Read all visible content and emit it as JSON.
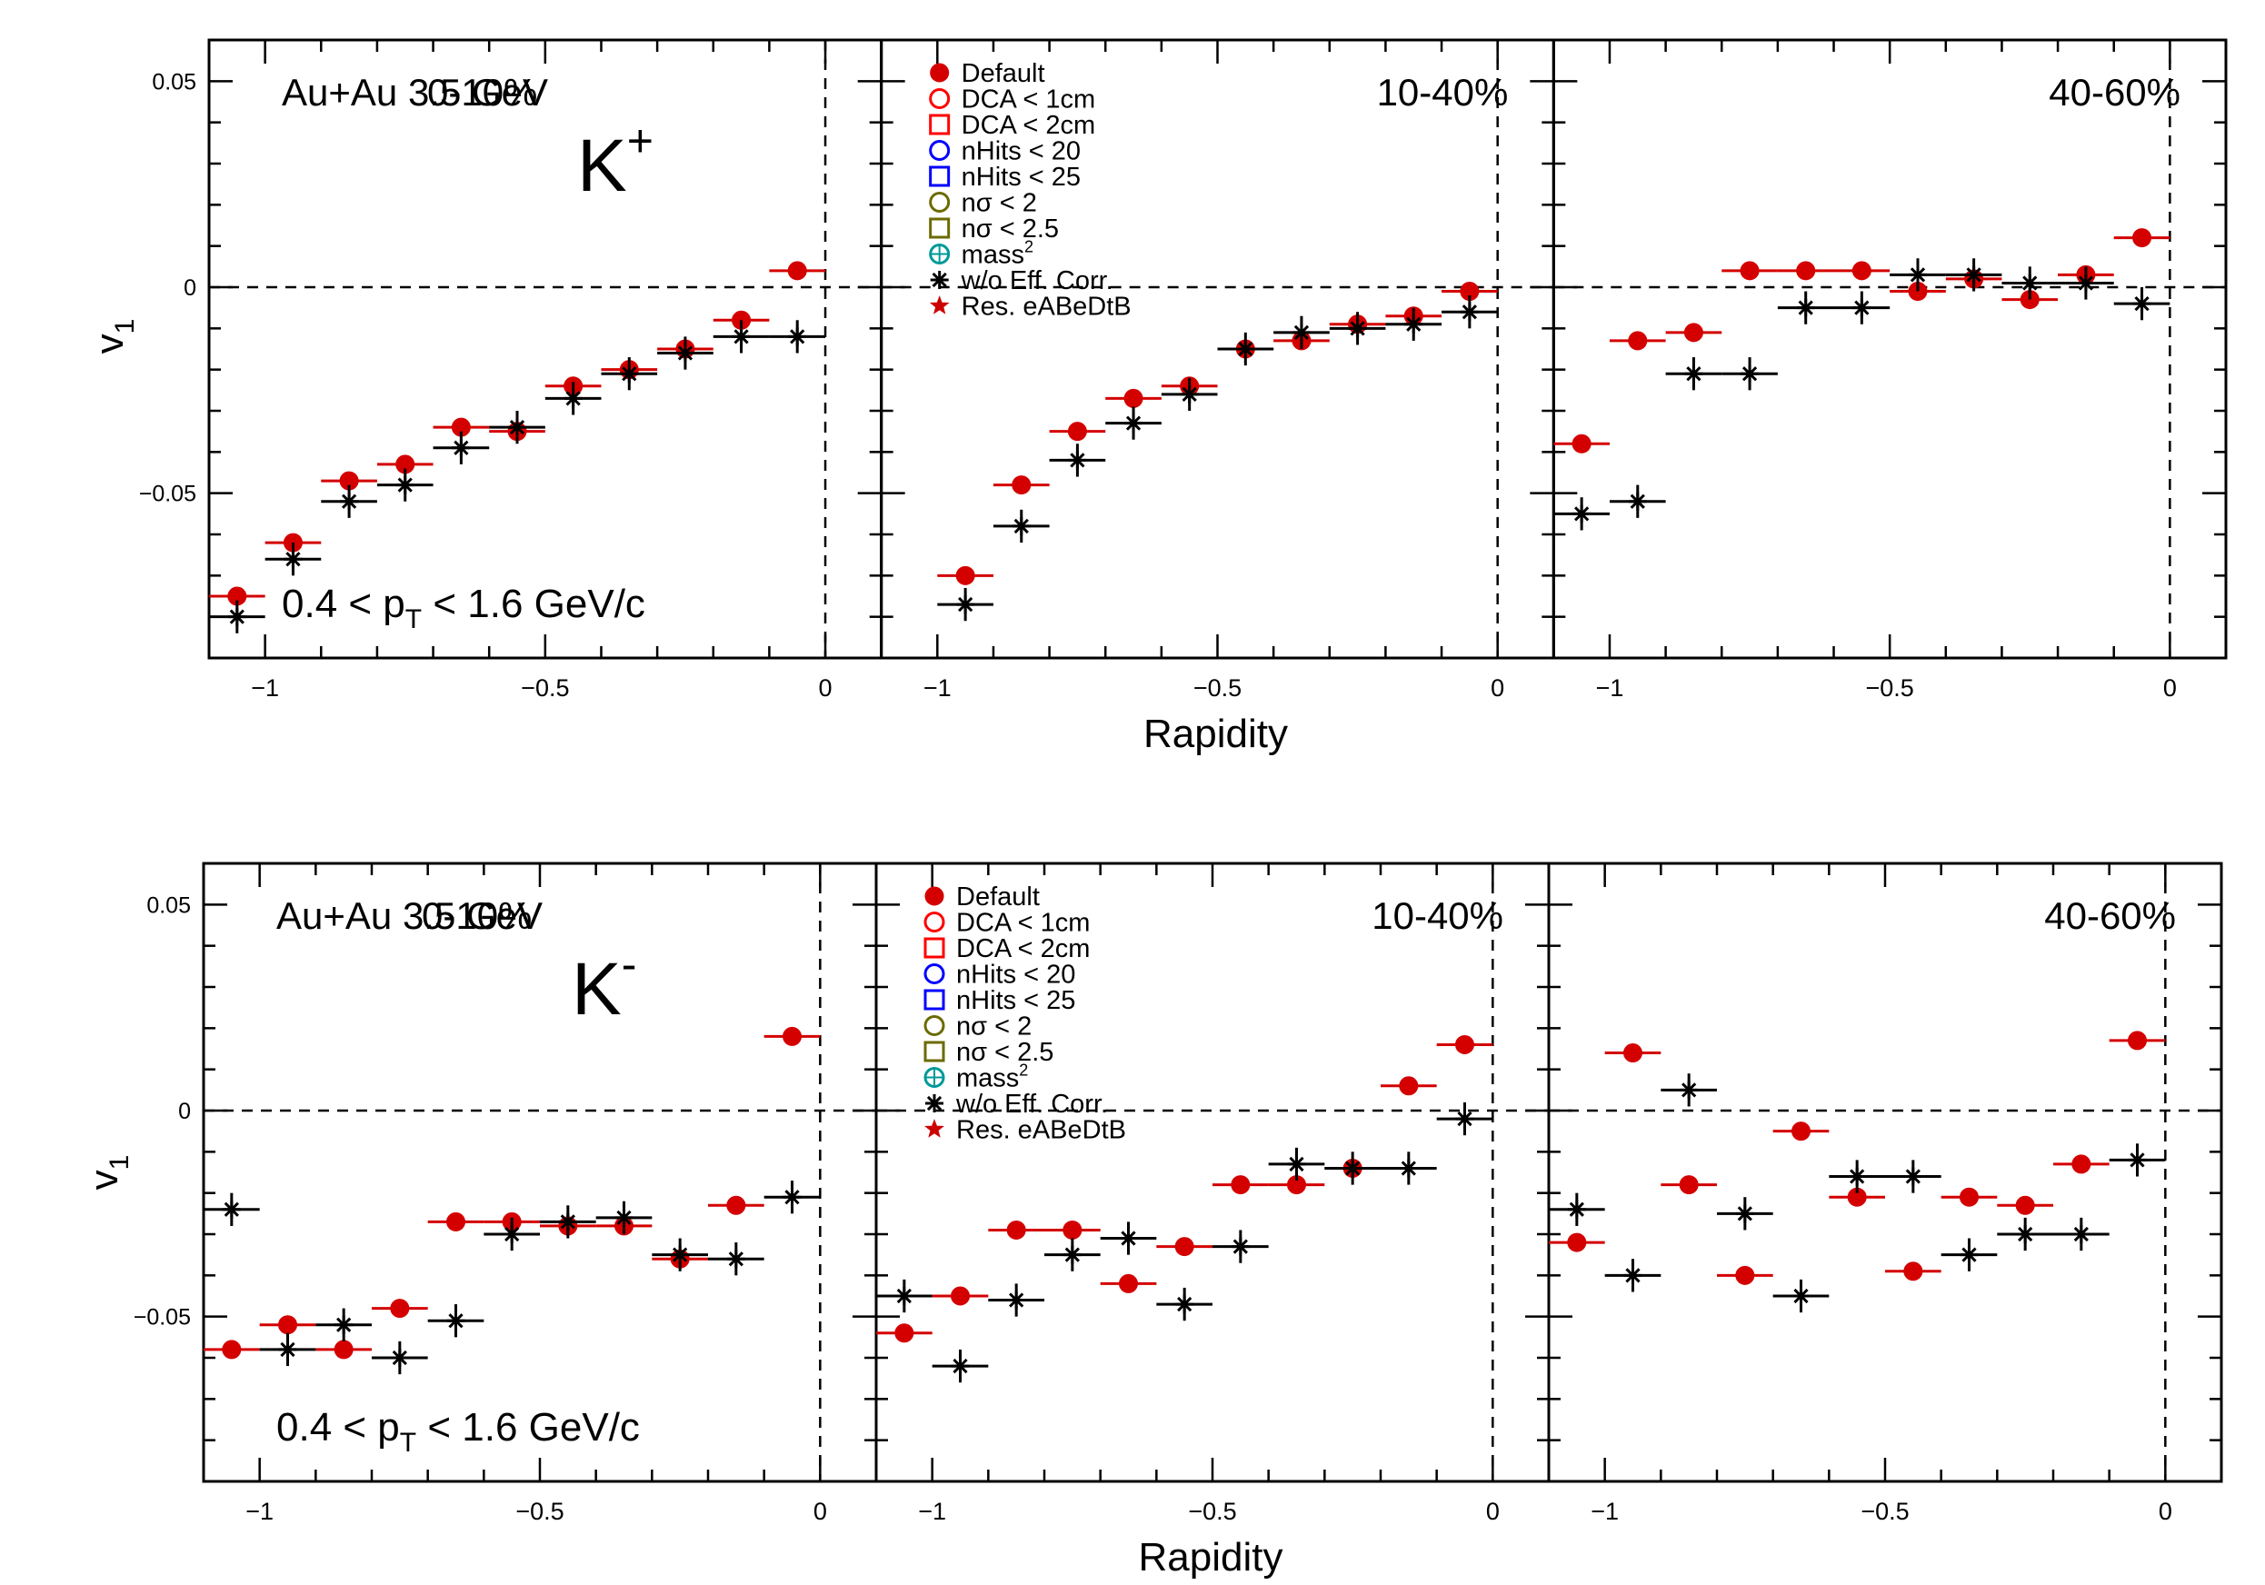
{
  "figure": {
    "xlabel": "Rapidity",
    "ylabel_main": "v",
    "ylabel_sub": "1",
    "collision_label": "Au+Au 3.5 GeV",
    "pt_label": {
      "pre": "0.4 < p",
      "sub": "T",
      "post": " < 1.6 GeV/c"
    },
    "x_ticks": [
      -1,
      -0.5,
      0
    ],
    "x_tick_labels": [
      "−1",
      "−0.5",
      "0"
    ],
    "y_ticks": [
      0.05,
      0,
      -0.05
    ],
    "y_tick_labels": [
      "0.05",
      "0",
      "−0.05"
    ],
    "x_range": [
      -1.1,
      0.1
    ],
    "y_range": [
      -0.09,
      0.06
    ]
  },
  "legend": [
    {
      "key": "default",
      "label": "Default",
      "sub": "",
      "sup": "",
      "marker": "filled-circle",
      "color": "#d40000"
    },
    {
      "key": "dca1",
      "label": "DCA < 1cm",
      "sub": "",
      "sup": "",
      "marker": "open-circle",
      "color": "#ff0000"
    },
    {
      "key": "dca2",
      "label": "DCA < 2cm",
      "sub": "",
      "sup": "",
      "marker": "open-square",
      "color": "#ff0000"
    },
    {
      "key": "nhits20",
      "label": "nHits < 20",
      "sub": "",
      "sup": "",
      "marker": "open-circle",
      "color": "#0000ff"
    },
    {
      "key": "nhits25",
      "label": "nHits < 25",
      "sub": "",
      "sup": "",
      "marker": "open-square",
      "color": "#0000ff"
    },
    {
      "key": "nsig2",
      "label": "nσ < 2",
      "sub": "",
      "sup": "",
      "marker": "open-circle",
      "color": "#6b6b00"
    },
    {
      "key": "nsig25",
      "label": "nσ < 2.5",
      "sub": "",
      "sup": "",
      "marker": "open-square",
      "color": "#6b6b00"
    },
    {
      "key": "mass2",
      "label": "mass",
      "sub": "",
      "sup": "2",
      "marker": "circle-plus",
      "color": "#009999"
    },
    {
      "key": "noeff",
      "label": "w/o Eff. Corr.",
      "sub": "",
      "sup": "",
      "marker": "asterisk",
      "color": "#000000"
    },
    {
      "key": "res",
      "label": "Res. eABeDtB",
      "sub": "",
      "sup": "",
      "marker": "star",
      "color": "#cc0000"
    }
  ],
  "chart_data": [
    {
      "type": "scatter",
      "particle": "K",
      "particle_sup": "+",
      "xlabel": "Rapidity",
      "ylabel": "v1",
      "panels": [
        {
          "centrality": "0-10%",
          "xlim": [
            -1.1,
            0.1
          ],
          "ylim": [
            -0.09,
            0.06
          ],
          "x": [
            -1.05,
            -0.95,
            -0.85,
            -0.75,
            -0.65,
            -0.55,
            -0.45,
            -0.35,
            -0.25,
            -0.15,
            -0.05
          ],
          "series": [
            {
              "key": "default",
              "values": [
                -0.075,
                -0.062,
                -0.047,
                -0.043,
                -0.034,
                -0.035,
                -0.024,
                -0.02,
                -0.015,
                -0.008,
                0.004
              ]
            },
            {
              "key": "noeff",
              "values": [
                -0.08,
                -0.066,
                -0.052,
                -0.048,
                -0.039,
                -0.034,
                -0.027,
                -0.021,
                -0.016,
                -0.012,
                -0.012
              ]
            }
          ]
        },
        {
          "centrality": "10-40%",
          "xlim": [
            -1.1,
            0.1
          ],
          "ylim": [
            -0.09,
            0.06
          ],
          "x": [
            -0.95,
            -0.85,
            -0.75,
            -0.65,
            -0.55,
            -0.45,
            -0.35,
            -0.25,
            -0.15,
            -0.05
          ],
          "series": [
            {
              "key": "default",
              "values": [
                -0.07,
                -0.048,
                -0.035,
                -0.027,
                -0.024,
                -0.015,
                -0.013,
                -0.009,
                -0.007,
                -0.001
              ]
            },
            {
              "key": "noeff",
              "values": [
                -0.077,
                -0.058,
                -0.042,
                -0.033,
                -0.026,
                -0.015,
                -0.011,
                -0.01,
                -0.009,
                -0.006
              ]
            }
          ]
        },
        {
          "centrality": "40-60%",
          "xlim": [
            -1.1,
            0.1
          ],
          "ylim": [
            -0.09,
            0.06
          ],
          "x": [
            -1.05,
            -0.95,
            -0.85,
            -0.75,
            -0.65,
            -0.55,
            -0.45,
            -0.35,
            -0.25,
            -0.15,
            -0.05
          ],
          "series": [
            {
              "key": "default",
              "values": [
                -0.038,
                -0.013,
                -0.011,
                0.004,
                0.004,
                0.004,
                -0.001,
                0.002,
                -0.003,
                0.003,
                0.012
              ]
            },
            {
              "key": "noeff",
              "values": [
                -0.055,
                -0.052,
                -0.021,
                -0.021,
                -0.005,
                -0.005,
                0.003,
                0.003,
                0.001,
                0.001,
                -0.004
              ]
            }
          ]
        }
      ]
    },
    {
      "type": "scatter",
      "particle": "K",
      "particle_sup": "-",
      "xlabel": "Rapidity",
      "ylabel": "v1",
      "panels": [
        {
          "centrality": "0-10%",
          "xlim": [
            -1.1,
            0.1
          ],
          "ylim": [
            -0.09,
            0.06
          ],
          "x": [
            -1.05,
            -0.95,
            -0.85,
            -0.75,
            -0.65,
            -0.55,
            -0.45,
            -0.35,
            -0.25,
            -0.15,
            -0.05
          ],
          "series": [
            {
              "key": "default",
              "values": [
                -0.058,
                -0.052,
                -0.058,
                -0.048,
                -0.027,
                -0.027,
                -0.028,
                -0.028,
                -0.036,
                -0.023,
                0.018
              ]
            },
            {
              "key": "noeff",
              "values": [
                -0.024,
                -0.058,
                -0.052,
                -0.06,
                -0.051,
                -0.03,
                -0.027,
                -0.026,
                -0.035,
                -0.036,
                -0.021
              ]
            }
          ]
        },
        {
          "centrality": "10-40%",
          "xlim": [
            -1.1,
            0.1
          ],
          "ylim": [
            -0.09,
            0.06
          ],
          "x": [
            -1.05,
            -0.95,
            -0.85,
            -0.75,
            -0.65,
            -0.55,
            -0.45,
            -0.35,
            -0.25,
            -0.15,
            -0.05
          ],
          "series": [
            {
              "key": "default",
              "values": [
                -0.054,
                -0.045,
                -0.029,
                -0.029,
                -0.042,
                -0.033,
                -0.018,
                -0.018,
                -0.014,
                0.006,
                0.016
              ]
            },
            {
              "key": "noeff",
              "values": [
                -0.045,
                -0.062,
                -0.046,
                -0.035,
                -0.031,
                -0.047,
                -0.033,
                -0.013,
                -0.014,
                -0.014,
                -0.002
              ]
            }
          ]
        },
        {
          "centrality": "40-60%",
          "xlim": [
            -1.1,
            0.1
          ],
          "ylim": [
            -0.09,
            0.06
          ],
          "x": [
            -1.05,
            -0.95,
            -0.85,
            -0.75,
            -0.65,
            -0.55,
            -0.45,
            -0.35,
            -0.25,
            -0.15,
            -0.05
          ],
          "series": [
            {
              "key": "default",
              "values": [
                -0.032,
                0.014,
                -0.018,
                -0.04,
                -0.005,
                -0.021,
                -0.039,
                -0.021,
                -0.023,
                -0.013,
                0.017
              ]
            },
            {
              "key": "noeff",
              "values": [
                -0.024,
                -0.04,
                0.005,
                -0.025,
                -0.045,
                -0.016,
                -0.016,
                -0.035,
                -0.03,
                -0.03,
                -0.012
              ]
            }
          ]
        }
      ]
    }
  ]
}
